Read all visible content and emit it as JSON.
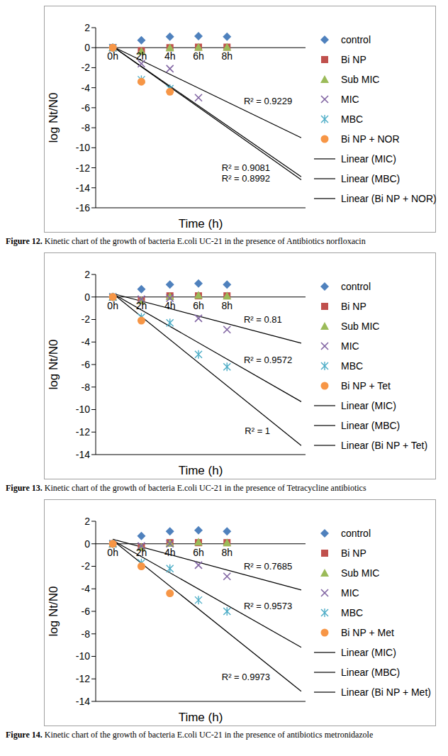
{
  "chart_data": [
    {
      "type": "scatter",
      "title": "Figure 12. Kinetic chart of the growth of bacteria E.coli UC-21 in the presence of Antibiotics norfloxacin",
      "x_label": "Time (h)",
      "y_label": "log Nt/N0",
      "x": [
        0,
        2,
        4,
        6,
        8
      ],
      "xlim": [
        -1.2,
        13.5
      ],
      "xticks": [
        {
          "value": 0,
          "label": "0h"
        },
        {
          "value": 2,
          "label": "2h"
        },
        {
          "value": 4,
          "label": "4h"
        },
        {
          "value": 6,
          "label": "6h"
        },
        {
          "value": 8,
          "label": "8h"
        }
      ],
      "ylim": [
        -16,
        2
      ],
      "yticks": [
        -16,
        -14,
        -12,
        -10,
        -8,
        -6,
        -4,
        -2,
        0,
        2
      ],
      "grid": false,
      "legend": "right",
      "series": [
        {
          "name": "control",
          "type": "scatter",
          "color": "#4F81BD",
          "marker": "diamond",
          "values": [
            0,
            0.75,
            1.1,
            1.15,
            1.1
          ]
        },
        {
          "name": "Bi NP",
          "type": "scatter",
          "color": "#C0504D",
          "marker": "square",
          "values": [
            0,
            -0.3,
            0,
            0.05,
            0.05
          ]
        },
        {
          "name": "Sub MIC",
          "type": "scatter",
          "color": "#9BBB59",
          "marker": "triangle",
          "values": [
            0,
            -0.35,
            0,
            0.05,
            0.05
          ]
        },
        {
          "name": "MIC",
          "type": "scatter",
          "color": "#8064A2",
          "marker": "x",
          "values": [
            0,
            -1.6,
            -2.1,
            -5.0,
            null
          ]
        },
        {
          "name": "MBC",
          "type": "scatter",
          "color": "#4BACC6",
          "marker": "star",
          "values": [
            0,
            -3.2,
            -4.1,
            null,
            null
          ]
        },
        {
          "name": "Bi NP + NOR",
          "type": "scatter",
          "color": "#F79646",
          "marker": "circle",
          "values": [
            0,
            -3.4,
            -4.4,
            null,
            null
          ]
        },
        {
          "name": "Linear (MIC)",
          "type": "line",
          "color": "#000000",
          "line_style": "solid",
          "x": [
            0,
            13.2
          ],
          "values": [
            0.1,
            -9.0
          ],
          "annotation": "R² = 0.9229"
        },
        {
          "name": "Linear (MBC)",
          "type": "line",
          "color": "#000000",
          "line_style": "solid",
          "x": [
            0,
            13.2
          ],
          "values": [
            0.1,
            -12.9
          ],
          "annotation": "R² = 0.9081"
        },
        {
          "name": "Linear (Bi NP + NOR)",
          "type": "line",
          "color": "#000000",
          "line_style": "solid",
          "x": [
            0,
            13.2
          ],
          "values": [
            0.1,
            -13.2
          ],
          "annotation": "R² = 0.8992"
        }
      ]
    },
    {
      "type": "scatter",
      "title": "Figure 13. Kinetic chart of the growth of bacteria E.coli UC-21 in the presence of Tetracycline antibiotics",
      "x_label": "Time (h)",
      "y_label": "log Nt/N0",
      "x": [
        0,
        2,
        4,
        6,
        8
      ],
      "xlim": [
        -1.2,
        13.5
      ],
      "xticks": [
        {
          "value": 0,
          "label": "0h"
        },
        {
          "value": 2,
          "label": "2h"
        },
        {
          "value": 4,
          "label": "4h"
        },
        {
          "value": 6,
          "label": "6h"
        },
        {
          "value": 8,
          "label": "8h"
        }
      ],
      "ylim": [
        -14,
        2
      ],
      "yticks": [
        -14,
        -12,
        -10,
        -8,
        -6,
        -4,
        -2,
        0,
        2
      ],
      "grid": false,
      "legend": "right",
      "series": [
        {
          "name": "control",
          "type": "scatter",
          "color": "#4F81BD",
          "marker": "diamond",
          "values": [
            0,
            0.7,
            1.1,
            1.2,
            1.1
          ]
        },
        {
          "name": "Bi NP",
          "type": "scatter",
          "color": "#C0504D",
          "marker": "square",
          "values": [
            0,
            -0.3,
            0.1,
            0.1,
            0.1
          ]
        },
        {
          "name": "Sub MIC",
          "type": "scatter",
          "color": "#9BBB59",
          "marker": "triangle",
          "values": [
            0,
            -0.3,
            0.05,
            0.15,
            0.1
          ]
        },
        {
          "name": "MIC",
          "type": "scatter",
          "color": "#8064A2",
          "marker": "x",
          "values": [
            0,
            -0.2,
            -0.1,
            -1.9,
            -2.9
          ]
        },
        {
          "name": "MBC",
          "type": "scatter",
          "color": "#4BACC6",
          "marker": "star",
          "values": [
            0,
            -1.8,
            -2.3,
            -5.1,
            -6.2
          ]
        },
        {
          "name": "Bi NP + Tet",
          "type": "scatter",
          "color": "#F79646",
          "marker": "circle",
          "values": [
            0,
            -2.1,
            null,
            null,
            null
          ]
        },
        {
          "name": "Linear (MIC)",
          "type": "line",
          "color": "#000000",
          "line_style": "solid",
          "x": [
            0,
            13.2
          ],
          "values": [
            0.3,
            -4.1
          ],
          "annotation": "R² = 0.81"
        },
        {
          "name": "Linear (MBC)",
          "type": "line",
          "color": "#000000",
          "line_style": "solid",
          "x": [
            0,
            13.2
          ],
          "values": [
            0.3,
            -9.3
          ],
          "annotation": "R² = 0.9572"
        },
        {
          "name": "Linear (Bi NP + Tet)",
          "type": "line",
          "color": "#000000",
          "line_style": "solid",
          "x": [
            0,
            13.2
          ],
          "values": [
            0.3,
            -13.2
          ],
          "annotation": "R² = 1"
        }
      ]
    },
    {
      "type": "scatter",
      "title": "Figure 14. Kinetic chart of the growth of bacteria E.coli UC-21 in the presence of antibiotics metronidazole",
      "x_label": "Time (h)",
      "y_label": "log Nt/N0",
      "x": [
        0,
        2,
        4,
        6,
        8
      ],
      "xlim": [
        -1.2,
        13.5
      ],
      "xticks": [
        {
          "value": 0,
          "label": "0h"
        },
        {
          "value": 2,
          "label": "2h"
        },
        {
          "value": 4,
          "label": "4h"
        },
        {
          "value": 6,
          "label": "6h"
        },
        {
          "value": 8,
          "label": "8h"
        }
      ],
      "ylim": [
        -14,
        2
      ],
      "yticks": [
        -14,
        -12,
        -10,
        -8,
        -6,
        -4,
        -2,
        0,
        2
      ],
      "grid": false,
      "legend": "right",
      "series": [
        {
          "name": "control",
          "type": "scatter",
          "color": "#4F81BD",
          "marker": "diamond",
          "values": [
            0,
            0.7,
            1.1,
            1.2,
            1.1
          ]
        },
        {
          "name": "Bi NP",
          "type": "scatter",
          "color": "#C0504D",
          "marker": "square",
          "values": [
            0,
            -0.3,
            0.1,
            0.1,
            0.1
          ]
        },
        {
          "name": "Sub MIC",
          "type": "scatter",
          "color": "#9BBB59",
          "marker": "triangle",
          "values": [
            0,
            -0.3,
            0.05,
            0.15,
            0.1
          ]
        },
        {
          "name": "MIC",
          "type": "scatter",
          "color": "#8064A2",
          "marker": "x",
          "values": [
            0,
            -0.2,
            0,
            -1.9,
            -2.9
          ]
        },
        {
          "name": "MBC",
          "type": "scatter",
          "color": "#4BACC6",
          "marker": "star",
          "values": [
            0,
            -1.7,
            -2.2,
            -5.0,
            -6.0
          ]
        },
        {
          "name": "Bi NP + Met",
          "type": "scatter",
          "color": "#F79646",
          "marker": "circle",
          "values": [
            0,
            -2.0,
            -4.4,
            null,
            null
          ]
        },
        {
          "name": "Linear (MIC)",
          "type": "line",
          "color": "#000000",
          "line_style": "solid",
          "x": [
            0,
            13.2
          ],
          "values": [
            0.4,
            -4.1
          ],
          "annotation": "R² = 0.7685"
        },
        {
          "name": "Linear (MBC)",
          "type": "line",
          "color": "#000000",
          "line_style": "solid",
          "x": [
            0,
            13.2
          ],
          "values": [
            0.3,
            -9.2
          ],
          "annotation": "R² = 0.9573"
        },
        {
          "name": "Linear (Bi NP + Met)",
          "type": "line",
          "color": "#000000",
          "line_style": "solid",
          "x": [
            0,
            13.2
          ],
          "values": [
            0.3,
            -13.1
          ],
          "annotation": "R² = 0.9973"
        }
      ]
    }
  ]
}
